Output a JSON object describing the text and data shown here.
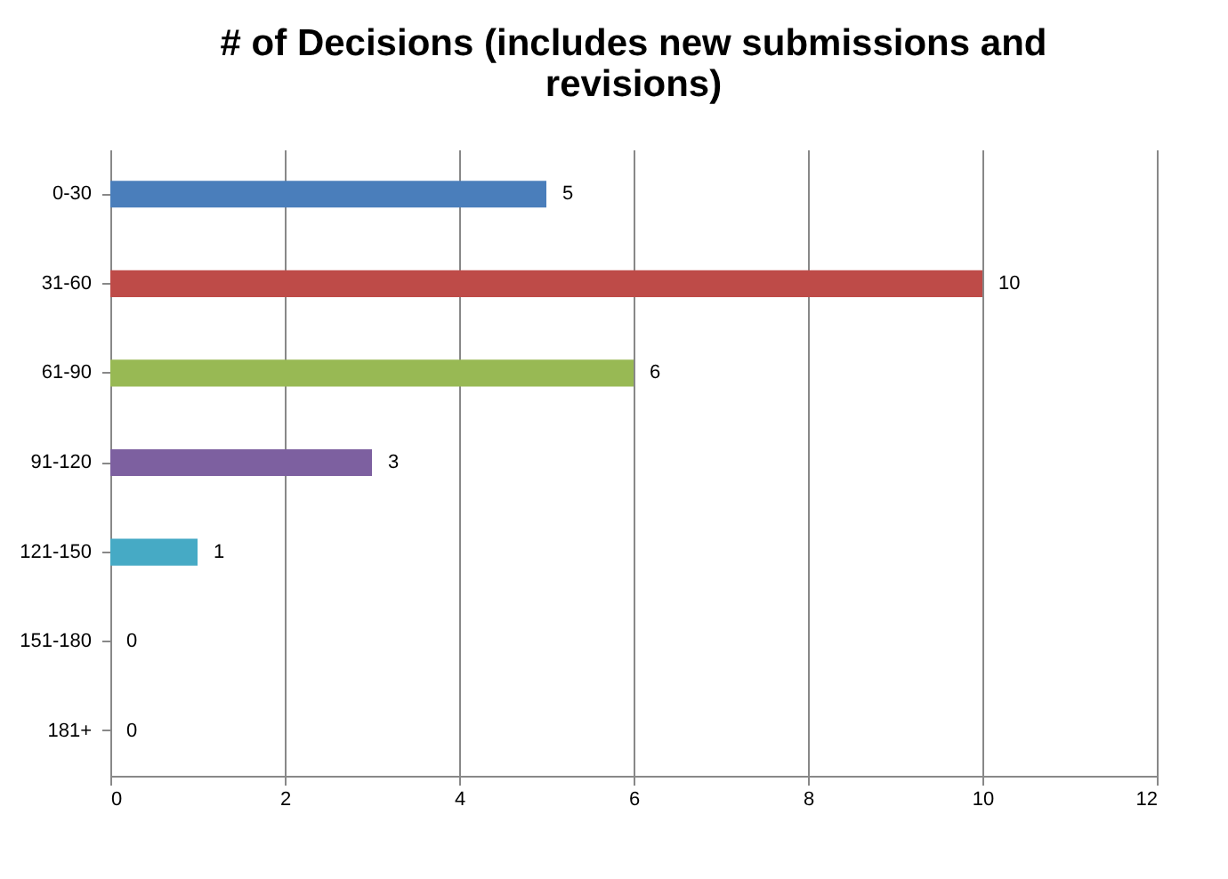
{
  "chart_data": {
    "type": "bar",
    "title": "# of Decisions (includes new submissions and revisions)",
    "orientation": "horizontal",
    "categories": [
      "0-30",
      "31-60",
      "61-90",
      "91-120",
      "121-150",
      "151-180",
      "181+"
    ],
    "values": [
      5,
      10,
      6,
      3,
      1,
      0,
      0
    ],
    "colors": [
      "#4a7ebb",
      "#be4b48",
      "#98b954",
      "#7d60a0",
      "#46aac5",
      "#4a7ebb",
      "#4a7ebb"
    ],
    "xlim": [
      0,
      12
    ],
    "xticks": [
      0,
      2,
      4,
      6,
      8,
      10,
      12
    ],
    "grid": "x",
    "data_labels": true
  }
}
